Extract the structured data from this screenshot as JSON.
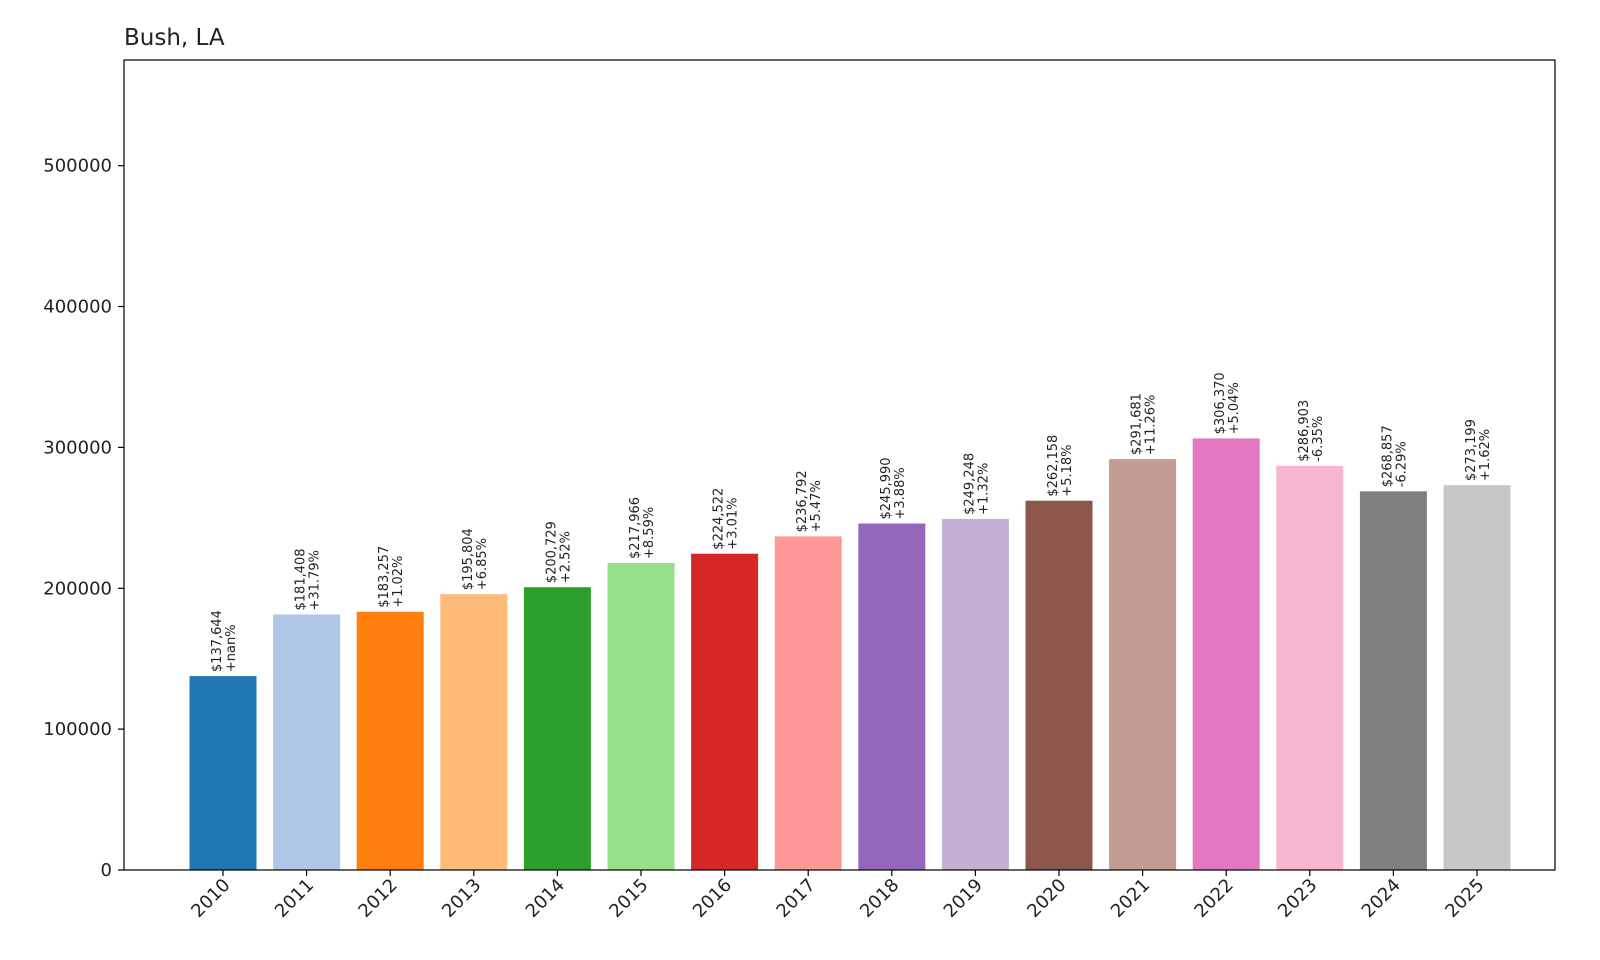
{
  "chart_data": {
    "type": "bar",
    "title": "Bush, LA",
    "xlabel": "",
    "ylabel": "",
    "ylim": [
      0,
      575000
    ],
    "yticks": [
      0,
      100000,
      200000,
      300000,
      400000,
      500000
    ],
    "grid": false,
    "categories": [
      "2010",
      "2011",
      "2012",
      "2013",
      "2014",
      "2015",
      "2016",
      "2017",
      "2018",
      "2019",
      "2020",
      "2021",
      "2022",
      "2023",
      "2024",
      "2025"
    ],
    "values": [
      137644,
      181408,
      183257,
      195804,
      200729,
      217966,
      224522,
      236792,
      245990,
      249248,
      262158,
      291681,
      306370,
      286903,
      268857,
      273199
    ],
    "value_labels": [
      "$137,644",
      "$181,408",
      "$183,257",
      "$195,804",
      "$200,729",
      "$217,966",
      "$224,522",
      "$236,792",
      "$245,990",
      "$249,248",
      "$262,158",
      "$291,681",
      "$306,370",
      "$286,903",
      "$268,857",
      "$273,199"
    ],
    "change_labels": [
      "+nan%",
      "+31.79%",
      "+1.02%",
      "+6.85%",
      "+2.52%",
      "+8.59%",
      "+3.01%",
      "+5.47%",
      "+3.88%",
      "+1.32%",
      "+5.18%",
      "+11.26%",
      "+5.04%",
      "-6.35%",
      "-6.29%",
      "+1.62%"
    ],
    "colors": [
      "#1f77b4",
      "#aec7e8",
      "#ff7f0e",
      "#ffbb78",
      "#2ca02c",
      "#98df8a",
      "#d62728",
      "#ff9896",
      "#9467bd",
      "#c5b0d5",
      "#8c564b",
      "#c49c94",
      "#e377c2",
      "#f7b6d2",
      "#7f7f7f",
      "#c7c7c7"
    ]
  }
}
